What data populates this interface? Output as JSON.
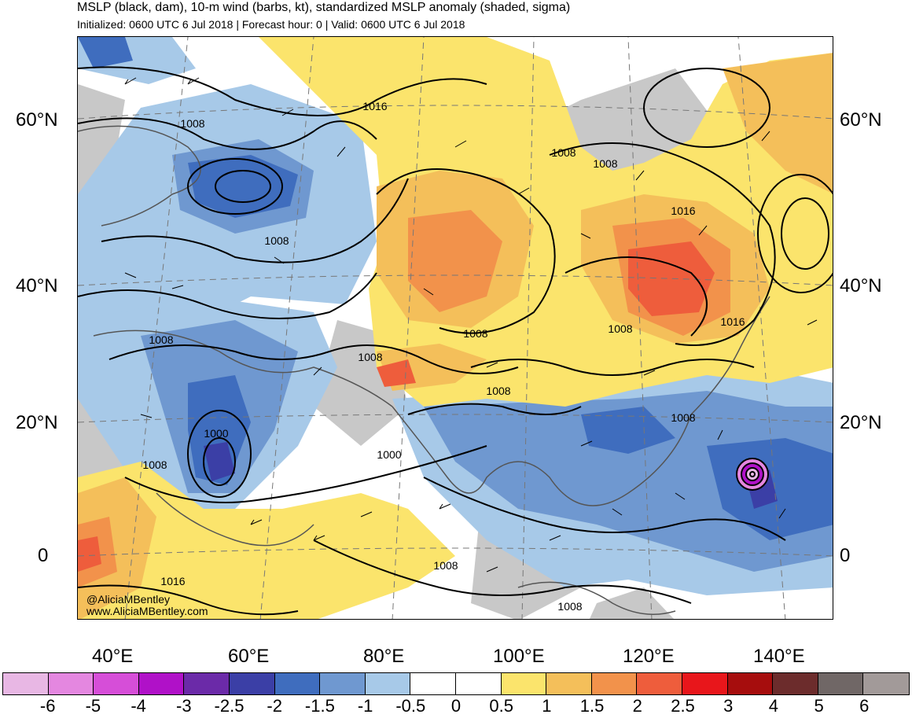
{
  "header": {
    "title": "MSLP (black, dam), 10-m wind (barbs, kt), standardized MSLP anomaly (shaded, sigma)",
    "subtitle": "Initialized: 0600 UTC 6 Jul 2018 | Forecast hour: 0 | Valid: 0600 UTC 6 Jul 2018"
  },
  "axes": {
    "lat_labels_left": [
      "60°N",
      "40°N",
      "20°N",
      "0"
    ],
    "lat_labels_right": [
      "60°N",
      "40°N",
      "20°N",
      "0"
    ],
    "lon_labels": [
      "40°E",
      "60°E",
      "80°E",
      "100°E",
      "120°E",
      "140°E"
    ]
  },
  "isobar_labels": [
    "1016",
    "1008",
    "1008",
    "1008",
    "1008",
    "1016",
    "1008",
    "1008",
    "1008",
    "1016",
    "1008",
    "1008",
    "1008",
    "1000",
    "1000",
    "1008",
    "1016",
    "1008",
    "1008"
  ],
  "credit": {
    "handle": "@AliciaMBentley",
    "site": "www.AliciaMBentley.com"
  },
  "colorbar": {
    "colors": [
      "#e8b7e4",
      "#e487e0",
      "#d64ed8",
      "#b011c8",
      "#6b2aa8",
      "#3b3fa6",
      "#3f6dbe",
      "#6f98d0",
      "#a7c9e8",
      "#ffffff",
      "#ffffff",
      "#fbe46c",
      "#f4bf5a",
      "#f2924b",
      "#ee5d3c",
      "#e8161b",
      "#a60d0d",
      "#6c2c2c",
      "#706766",
      "#a29a99"
    ],
    "labels": [
      "-6",
      "-5",
      "-4",
      "-3",
      "-2.5",
      "-2",
      "-1.5",
      "-1",
      "-0.5",
      "0",
      "0.5",
      "1",
      "1.5",
      "2",
      "2.5",
      "3",
      "4",
      "5",
      "6"
    ]
  }
}
